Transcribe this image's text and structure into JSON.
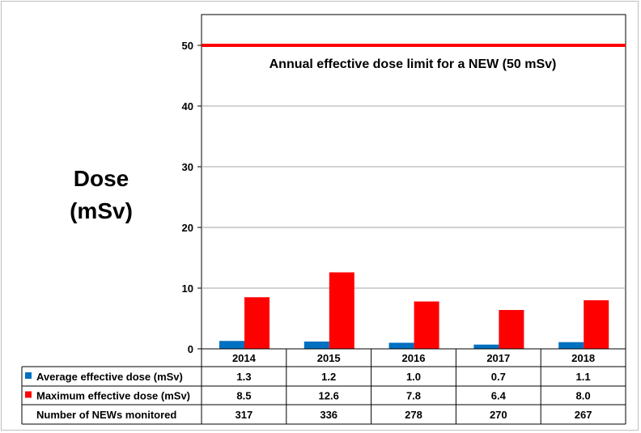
{
  "chart_data": {
    "type": "bar",
    "categories": [
      "2014",
      "2015",
      "2016",
      "2017",
      "2018"
    ],
    "series": [
      {
        "name": "Average effective dose (mSv)",
        "values": [
          1.3,
          1.2,
          1.0,
          0.7,
          1.1
        ],
        "display": [
          "1.3",
          "1.2",
          "1.0",
          "0.7",
          "1.1"
        ],
        "color": "#0070c0"
      },
      {
        "name": "Maximum effective dose (mSv)",
        "values": [
          8.5,
          12.6,
          7.8,
          6.4,
          8.0
        ],
        "display": [
          "8.5",
          "12.6",
          "7.8",
          "6.4",
          "8.0"
        ],
        "color": "#ff0000"
      }
    ],
    "table_extra_row": {
      "name": "Number of NEWs monitored",
      "values": [
        "317",
        "336",
        "278",
        "270",
        "267"
      ]
    },
    "ylabel_line1": "Dose",
    "ylabel_line2": "(mSv)",
    "ylim": [
      0,
      55
    ],
    "yticks": [
      0,
      10,
      20,
      30,
      40,
      50
    ],
    "grid": true,
    "limit_line": {
      "value": 50,
      "label": "Annual effective dose limit for a NEW (50 mSv)",
      "color": "#ff0000"
    }
  }
}
